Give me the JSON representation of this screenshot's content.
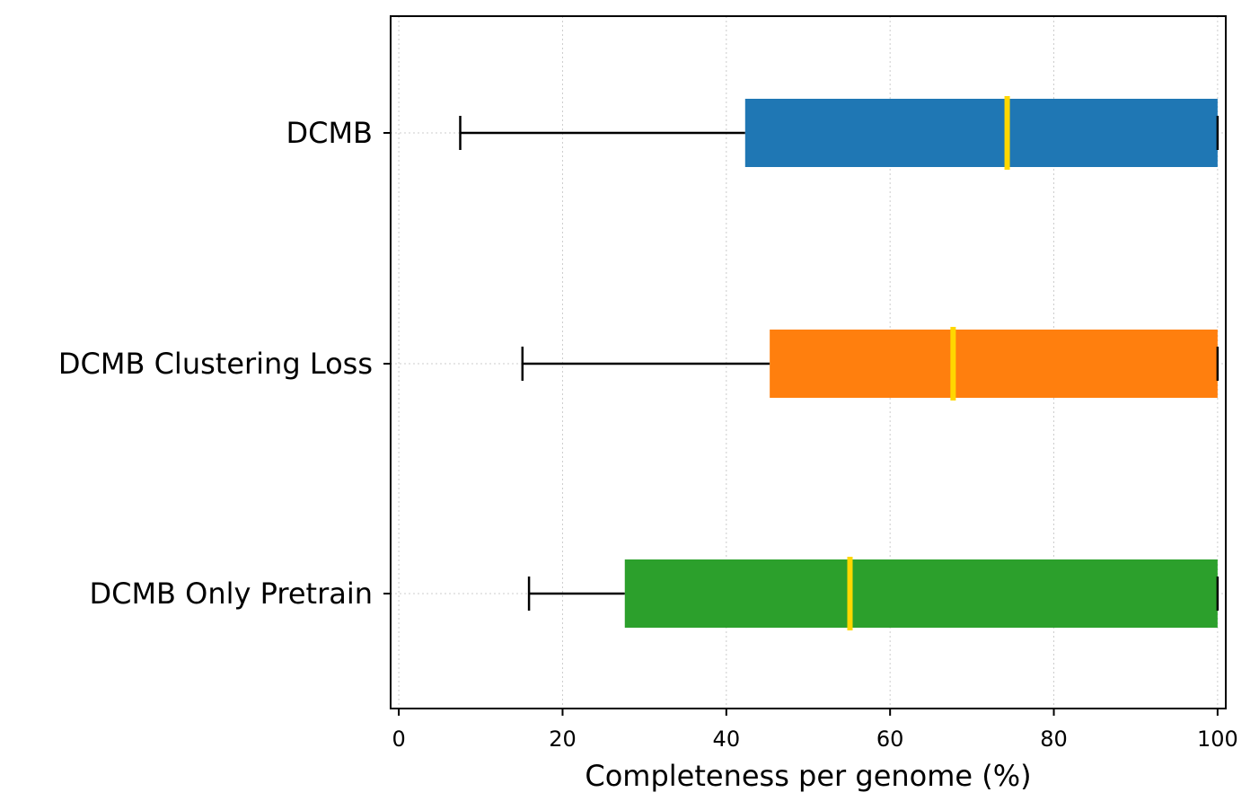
{
  "chart_data": {
    "type": "box",
    "orientation": "horizontal",
    "title": "",
    "xlabel": "Completeness per genome (%)",
    "ylabel": "",
    "xlim": [
      -1,
      101
    ],
    "xticks": [
      0,
      20,
      40,
      60,
      80,
      100
    ],
    "grid": "x dotted",
    "categories": [
      "DCMB",
      "DCMB Clustering Loss",
      "DCMB Only Pretrain"
    ],
    "boxes": [
      {
        "label": "DCMB",
        "whisker_low": 7.5,
        "q1": 42.3,
        "median": 74.3,
        "q3": 100,
        "whisker_high": 100,
        "color": "#1f77b4"
      },
      {
        "label": "DCMB Clustering Loss",
        "whisker_low": 15.1,
        "q1": 45.3,
        "median": 67.7,
        "q3": 100,
        "whisker_high": 100,
        "color": "#ff7f0e"
      },
      {
        "label": "DCMB Only Pretrain",
        "whisker_low": 15.9,
        "q1": 27.6,
        "median": 55.1,
        "q3": 100,
        "whisker_high": 100,
        "color": "#2ca02c"
      }
    ],
    "median_color": "#ffd700"
  }
}
